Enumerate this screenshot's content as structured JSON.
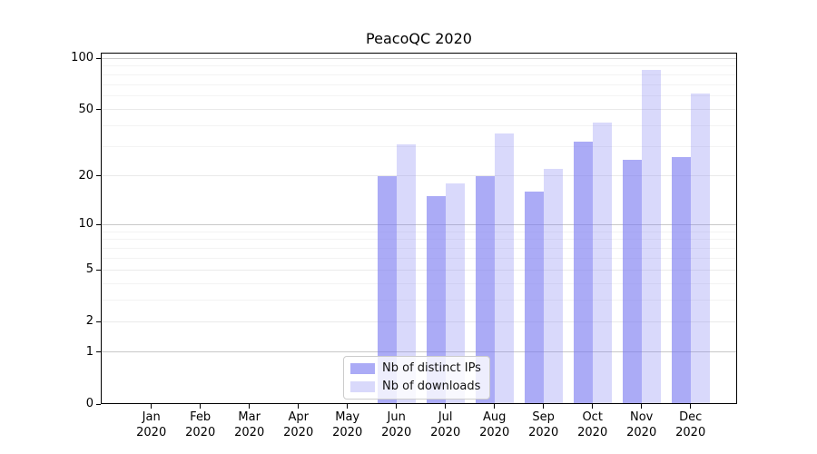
{
  "title": "PeacoQC 2020",
  "chart_data": {
    "type": "bar",
    "title": "PeacoQC 2020",
    "categories": [
      "Jan",
      "Feb",
      "Mar",
      "Apr",
      "May",
      "Jun",
      "Jul",
      "Aug",
      "Sep",
      "Oct",
      "Nov",
      "Dec"
    ],
    "year": "2020",
    "series": [
      {
        "name": "Nb of distinct IPs",
        "color": "rgba(120,120,240,0.62)",
        "values": [
          0,
          0,
          0,
          0,
          0,
          20,
          15,
          20,
          16,
          32,
          25,
          26
        ]
      },
      {
        "name": "Nb of downloads",
        "color": "rgba(120,120,240,0.28)",
        "values": [
          0,
          0,
          0,
          0,
          0,
          31,
          18,
          36,
          22,
          42,
          85,
          62
        ]
      }
    ],
    "xlabel": "",
    "ylabel": "",
    "y_axis": {
      "scale": "log1p",
      "ticks": [
        0,
        1,
        2,
        5,
        10,
        20,
        50,
        100
      ],
      "decade_ticks": [
        1,
        10,
        100
      ],
      "minor_gridlines": [
        3,
        4,
        6,
        7,
        8,
        9,
        30,
        40,
        60,
        70,
        80,
        90
      ],
      "ylim": [
        0,
        110
      ]
    },
    "grid": true,
    "legend": {
      "position": "lower center",
      "entries": [
        "Nb of distinct IPs",
        "Nb of downloads"
      ]
    },
    "colors": {
      "decade_gridline": "#c9c9c9",
      "labeled_gridline": "#eaeaea",
      "minor_gridline": "#f3f3f3",
      "axis": "#000000",
      "legend_border": "#cccccc"
    }
  }
}
